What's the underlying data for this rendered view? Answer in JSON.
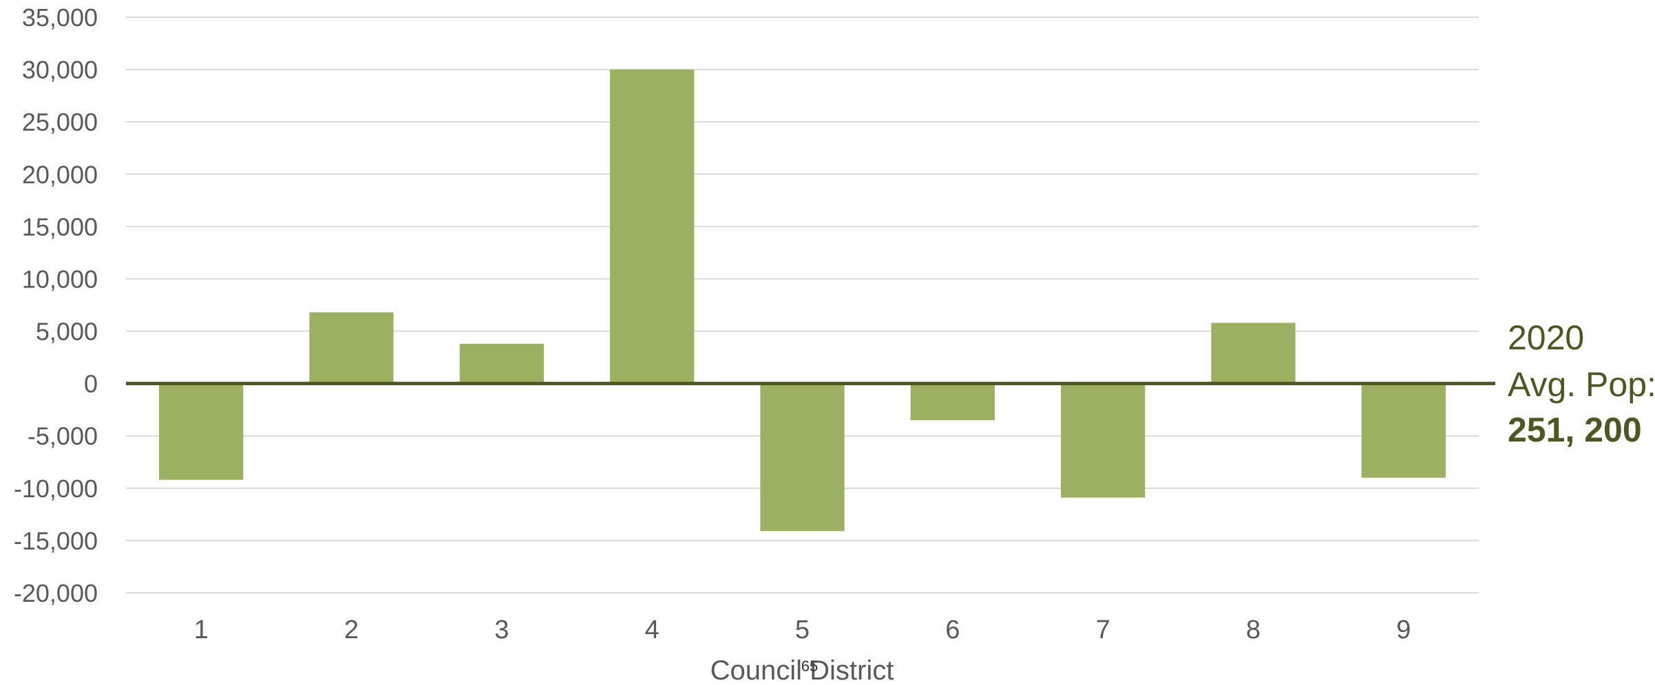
{
  "chart_data": {
    "type": "bar",
    "categories": [
      "1",
      "2",
      "3",
      "4",
      "5",
      "6",
      "7",
      "8",
      "9"
    ],
    "values": [
      -9200,
      6800,
      3800,
      30000,
      -14100,
      -3500,
      -10900,
      5800,
      -9000
    ],
    "ylim": [
      -20000,
      35000
    ],
    "yticks": [
      "35,000",
      "30,000",
      "25,000",
      "20,000",
      "15,000",
      "10,000",
      "5,000",
      "0",
      "-5,000",
      "-10,000",
      "-15,000",
      "-20,000"
    ],
    "ytick_values": [
      35000,
      30000,
      25000,
      20000,
      15000,
      10000,
      5000,
      0,
      -5000,
      -10000,
      -15000,
      -20000
    ],
    "xlabel": "Council District",
    "ylabel": "",
    "grid": true,
    "bar_color": "#9bb061",
    "baseline_color": "#4f5624",
    "annotation": {
      "line1": "2020",
      "line2": "Avg. Pop:",
      "line3": "251, 200"
    }
  },
  "page_number": "65"
}
